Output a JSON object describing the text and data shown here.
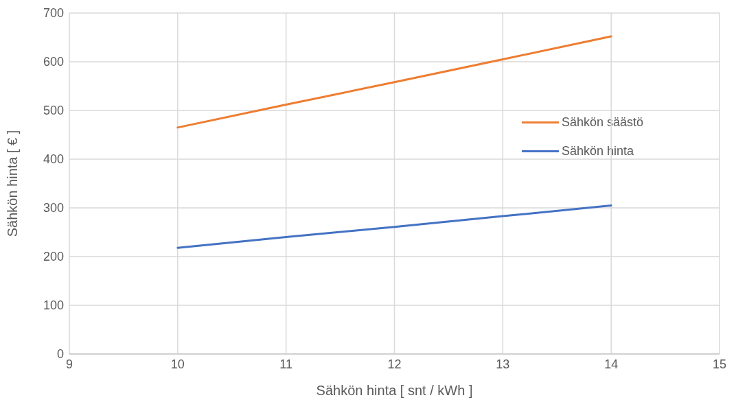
{
  "chart_data": {
    "type": "line",
    "xlabel": "Sähkön hinta [ snt / kWh ]",
    "ylabel": "Sähkön hinta [ € ]",
    "xlim": [
      9,
      15
    ],
    "xticks": [
      9,
      10,
      11,
      12,
      13,
      14,
      15
    ],
    "ylim": [
      0,
      700
    ],
    "yticks": [
      0,
      100,
      200,
      300,
      400,
      500,
      600,
      700
    ],
    "grid": true,
    "legend": "right",
    "marker": "none",
    "line_style": "solid",
    "series": [
      {
        "name": "Sähkön säästö",
        "color": "#ed7d31",
        "x": [
          10,
          11,
          12,
          13,
          14
        ],
        "values": [
          465,
          512,
          558,
          605,
          652
        ]
      },
      {
        "name": "Sähkön hinta",
        "color": "#4472c4",
        "x": [
          10,
          11,
          12,
          13,
          14
        ],
        "values": [
          218,
          240,
          261,
          283,
          305
        ]
      }
    ]
  }
}
